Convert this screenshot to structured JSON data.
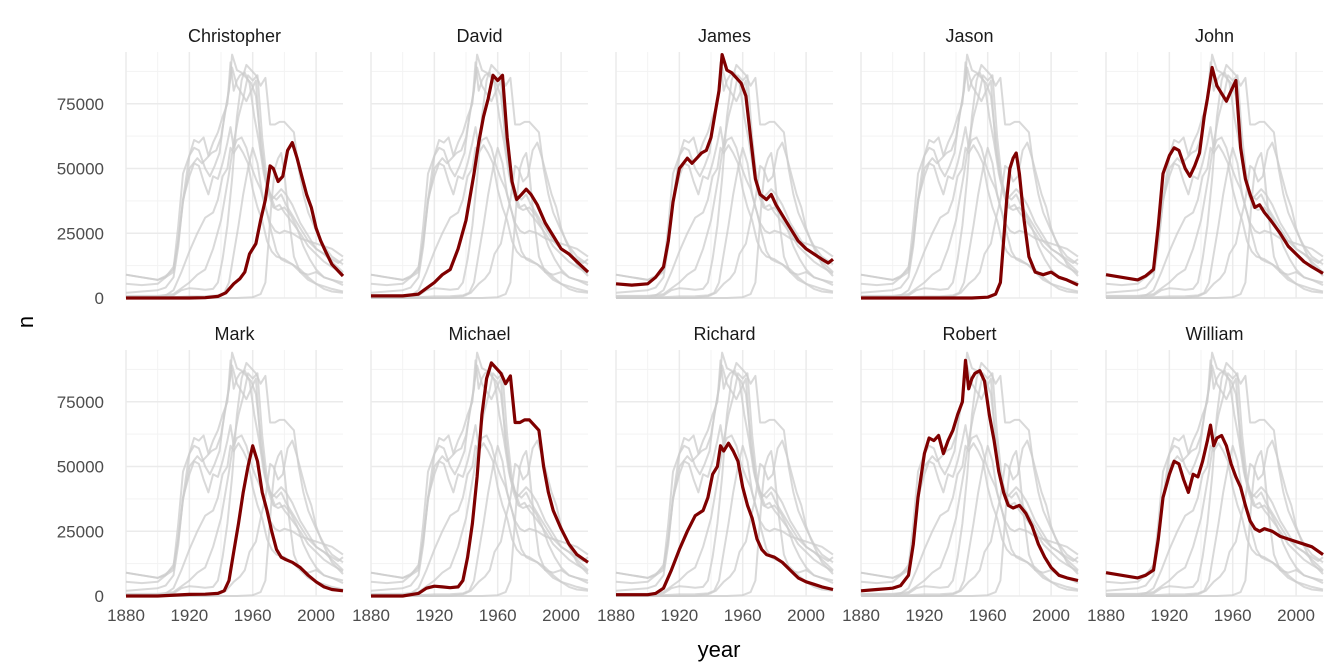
{
  "chart_data": {
    "type": "line",
    "layout": "facet-grid",
    "facets": [
      "Christopher",
      "David",
      "James",
      "Jason",
      "John",
      "Mark",
      "Michael",
      "Richard",
      "Robert",
      "William"
    ],
    "facet_rows": 2,
    "facet_cols": 5,
    "xlabel": "year",
    "ylabel": "n",
    "xlim": [
      1880,
      2017
    ],
    "ylim": [
      0,
      95000
    ],
    "x_ticks": [
      1880,
      1920,
      1960,
      2000
    ],
    "y_ticks": [
      0,
      25000,
      50000,
      75000
    ],
    "grid": true,
    "colors": {
      "highlight": "#7f0000",
      "background_lines": "#cccccc",
      "grid_major": "#ebebeb",
      "grid_minor": "#f3f3f3",
      "text": "#4d4d4d"
    },
    "series": [
      {
        "name": "Christopher",
        "x": [
          1880,
          1900,
          1920,
          1930,
          1938,
          1943,
          1948,
          1952,
          1955,
          1958,
          1962,
          1965,
          1968,
          1971,
          1973,
          1976,
          1979,
          1982,
          1985,
          1988,
          1991,
          1994,
          1997,
          2000,
          2003,
          2006,
          2010,
          2017
        ],
        "values": [
          0,
          0,
          0,
          100,
          600,
          2000,
          5500,
          7500,
          10000,
          17000,
          21000,
          30000,
          38000,
          51000,
          50000,
          45000,
          47000,
          57000,
          60000,
          54000,
          47000,
          40000,
          35000,
          27000,
          22000,
          18000,
          13000,
          8500
        ]
      },
      {
        "name": "David",
        "x": [
          1880,
          1900,
          1910,
          1920,
          1925,
          1930,
          1935,
          1940,
          1945,
          1948,
          1951,
          1954,
          1957,
          1960,
          1963,
          1966,
          1969,
          1972,
          1975,
          1978,
          1981,
          1985,
          1990,
          1995,
          2000,
          2005,
          2010,
          2017
        ],
        "values": [
          800,
          800,
          1500,
          6000,
          9000,
          11000,
          19000,
          30000,
          48000,
          60000,
          70000,
          77000,
          86000,
          84000,
          86000,
          62000,
          45000,
          38000,
          40000,
          42000,
          40000,
          36000,
          29000,
          24000,
          19000,
          17000,
          14000,
          10000
        ]
      },
      {
        "name": "James",
        "x": [
          1880,
          1890,
          1900,
          1905,
          1910,
          1913,
          1916,
          1920,
          1925,
          1928,
          1931,
          1934,
          1937,
          1940,
          1943,
          1945,
          1947,
          1950,
          1953,
          1956,
          1959,
          1962,
          1965,
          1968,
          1971,
          1975,
          1978,
          1981,
          1985,
          1990,
          1995,
          2000,
          2005,
          2010,
          2014,
          2017
        ],
        "values": [
          5500,
          5000,
          5500,
          8000,
          12000,
          22000,
          37000,
          50000,
          54000,
          52000,
          54000,
          56000,
          57000,
          62000,
          73000,
          80000,
          94000,
          88000,
          87000,
          85000,
          83000,
          78000,
          62000,
          46000,
          40000,
          38000,
          40000,
          36000,
          32000,
          27000,
          22000,
          19000,
          17000,
          15000,
          13500,
          15000
        ]
      },
      {
        "name": "Jason",
        "x": [
          1880,
          1900,
          1950,
          1960,
          1965,
          1968,
          1970,
          1972,
          1974,
          1976,
          1978,
          1980,
          1983,
          1986,
          1990,
          1995,
          2000,
          2005,
          2010,
          2017
        ],
        "values": [
          0,
          0,
          0,
          300,
          1500,
          6000,
          22000,
          38000,
          50000,
          54000,
          56000,
          48000,
          30000,
          16000,
          10000,
          9000,
          10000,
          8000,
          7000,
          5000
        ]
      },
      {
        "name": "John",
        "x": [
          1880,
          1890,
          1900,
          1905,
          1910,
          1913,
          1916,
          1920,
          1923,
          1926,
          1930,
          1933,
          1936,
          1939,
          1942,
          1944,
          1947,
          1950,
          1953,
          1956,
          1959,
          1962,
          1965,
          1968,
          1971,
          1974,
          1977,
          1980,
          1984,
          1990,
          1995,
          2000,
          2005,
          2010,
          2017
        ],
        "values": [
          9000,
          8000,
          7000,
          8500,
          11000,
          28000,
          48000,
          55000,
          58000,
          57000,
          50000,
          47000,
          51000,
          56000,
          70000,
          77000,
          89000,
          82000,
          79000,
          76000,
          80000,
          84000,
          58000,
          46000,
          40000,
          35000,
          36000,
          33000,
          30000,
          25000,
          20000,
          17000,
          14000,
          12000,
          9500
        ]
      },
      {
        "name": "Mark",
        "x": [
          1880,
          1900,
          1920,
          1930,
          1938,
          1942,
          1945,
          1948,
          1951,
          1954,
          1957,
          1960,
          1963,
          1966,
          1969,
          1972,
          1975,
          1978,
          1981,
          1985,
          1990,
          1995,
          2000,
          2005,
          2010,
          2017
        ],
        "values": [
          0,
          0,
          600,
          700,
          1000,
          2000,
          6000,
          17000,
          28000,
          40000,
          50000,
          58000,
          52000,
          40000,
          33000,
          25000,
          18000,
          15000,
          14000,
          13000,
          11000,
          8000,
          5500,
          3500,
          2500,
          2000
        ]
      },
      {
        "name": "Michael",
        "x": [
          1880,
          1900,
          1905,
          1910,
          1915,
          1920,
          1925,
          1930,
          1935,
          1938,
          1941,
          1944,
          1947,
          1950,
          1953,
          1956,
          1959,
          1962,
          1965,
          1968,
          1971,
          1974,
          1977,
          1980,
          1983,
          1986,
          1989,
          1992,
          1995,
          2000,
          2005,
          2010,
          2017
        ],
        "values": [
          0,
          0,
          500,
          1000,
          3000,
          3800,
          3500,
          3200,
          3500,
          6000,
          15000,
          28000,
          46000,
          70000,
          84000,
          90000,
          88000,
          86000,
          82000,
          85000,
          67000,
          67000,
          68000,
          68000,
          66000,
          64000,
          50000,
          40000,
          33000,
          26000,
          20000,
          16000,
          13000
        ]
      },
      {
        "name": "Richard",
        "x": [
          1880,
          1900,
          1905,
          1910,
          1915,
          1920,
          1925,
          1930,
          1935,
          1938,
          1941,
          1944,
          1946,
          1948,
          1951,
          1954,
          1957,
          1960,
          1963,
          1966,
          1969,
          1972,
          1975,
          1980,
          1985,
          1990,
          1995,
          2000,
          2005,
          2010,
          2017
        ],
        "values": [
          500,
          500,
          1000,
          3000,
          10000,
          18000,
          25000,
          31000,
          33000,
          38000,
          47000,
          50000,
          58000,
          56000,
          59000,
          56000,
          52000,
          42000,
          35000,
          30000,
          22000,
          18000,
          16000,
          15000,
          13000,
          10000,
          7000,
          5500,
          4500,
          3500,
          2500
        ]
      },
      {
        "name": "Robert",
        "x": [
          1880,
          1890,
          1900,
          1905,
          1910,
          1913,
          1916,
          1920,
          1923,
          1926,
          1929,
          1932,
          1935,
          1938,
          1941,
          1944,
          1946,
          1948,
          1950,
          1952,
          1955,
          1958,
          1961,
          1964,
          1967,
          1970,
          1973,
          1976,
          1980,
          1984,
          1988,
          1992,
          1996,
          2000,
          2005,
          2010,
          2017
        ],
        "values": [
          2000,
          2500,
          3000,
          4000,
          8000,
          20000,
          38000,
          55000,
          61000,
          60000,
          62000,
          55000,
          60000,
          64000,
          70000,
          75000,
          91000,
          80000,
          84000,
          86000,
          87000,
          83000,
          70000,
          60000,
          48000,
          40000,
          35000,
          34000,
          35000,
          32000,
          27000,
          20000,
          15000,
          11000,
          8000,
          7000,
          6000
        ]
      },
      {
        "name": "William",
        "x": [
          1880,
          1890,
          1900,
          1905,
          1910,
          1913,
          1916,
          1920,
          1923,
          1926,
          1929,
          1932,
          1935,
          1938,
          1941,
          1944,
          1946,
          1948,
          1950,
          1953,
          1956,
          1959,
          1962,
          1965,
          1968,
          1971,
          1974,
          1977,
          1980,
          1985,
          1990,
          1995,
          2000,
          2005,
          2010,
          2017
        ],
        "values": [
          9000,
          8000,
          7000,
          8000,
          10000,
          22000,
          38000,
          47000,
          52000,
          51000,
          45000,
          40000,
          47000,
          46000,
          52000,
          60000,
          66000,
          58000,
          61000,
          62000,
          58000,
          51000,
          46000,
          42000,
          35000,
          29000,
          26000,
          25000,
          26000,
          25000,
          23000,
          22000,
          21000,
          20000,
          19000,
          16000
        ]
      }
    ]
  }
}
